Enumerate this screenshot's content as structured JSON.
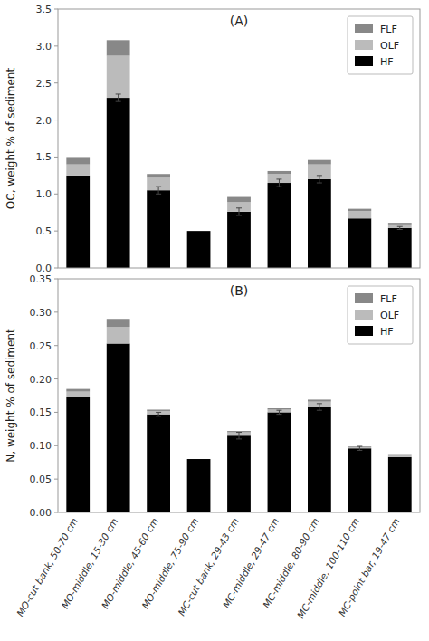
{
  "chart_data": [
    {
      "type": "bar",
      "stacked": true,
      "title": "(A)",
      "y_label": "OC, weight % of sediment",
      "categories": [
        "MO-cut bank, 50-70 cm",
        "MO-middle, 15-30 cm",
        "MO-middle, 45-60 cm",
        "MO-middle, 75-90 cm",
        "MC-cut bank, 29-43 cm",
        "MC-middle, 29-47 cm",
        "MC-middle, 80-90 cm",
        "MC-middle, 100-110 cm",
        "MC-point bar, 19-47 cm"
      ],
      "series": [
        {
          "name": "HF",
          "color": "#000000",
          "values": [
            1.25,
            2.3,
            1.05,
            0.5,
            0.76,
            1.15,
            1.2,
            0.67,
            0.54
          ],
          "errors": [
            0.0,
            0.05,
            0.05,
            0.0,
            0.05,
            0.05,
            0.05,
            0.0,
            0.02
          ]
        },
        {
          "name": "OLF",
          "color": "#bbbbbb",
          "values": [
            0.15,
            0.57,
            0.17,
            0.0,
            0.13,
            0.12,
            0.2,
            0.1,
            0.05
          ]
        },
        {
          "name": "FLF",
          "color": "#888888",
          "values": [
            0.1,
            0.21,
            0.05,
            0.0,
            0.07,
            0.04,
            0.06,
            0.03,
            0.02
          ]
        }
      ],
      "ylim": [
        0.0,
        3.5
      ],
      "yticks": [
        {
          "value": 0.0,
          "label": "0.0"
        },
        0.5,
        {
          "value": 1.0,
          "label": "1.0"
        },
        1.5,
        {
          "value": 2.0,
          "label": "2.0"
        },
        2.5,
        {
          "value": 3.0,
          "label": "3.0"
        },
        3.5
      ],
      "grid": false,
      "legend": "upper right",
      "tick_labels": "y"
    },
    {
      "type": "bar",
      "stacked": true,
      "title": "(B)",
      "y_label": "N, weight % of sediment",
      "categories": [
        "MO-cut bank, 50-70 cm",
        "MO-middle, 15-30 cm",
        "MO-middle, 45-60 cm",
        "MO-middle, 75-90 cm",
        "MC-cut bank, 29-43 cm",
        "MC-middle, 29-47 cm",
        "MC-middle, 80-90 cm",
        "MC-middle, 100-110 cm",
        "MC-point bar, 19-47 cm"
      ],
      "series": [
        {
          "name": "HF",
          "color": "#000000",
          "values": [
            0.173,
            0.253,
            0.147,
            0.08,
            0.115,
            0.15,
            0.158,
            0.096,
            0.083
          ],
          "errors": [
            0.0,
            0.0,
            0.003,
            0.0,
            0.005,
            0.003,
            0.005,
            0.003,
            0.0
          ]
        },
        {
          "name": "OLF",
          "color": "#bbbbbb",
          "values": [
            0.008,
            0.025,
            0.005,
            0.0,
            0.005,
            0.004,
            0.008,
            0.002,
            0.002
          ]
        },
        {
          "name": "FLF",
          "color": "#888888",
          "values": [
            0.004,
            0.012,
            0.002,
            0.0,
            0.002,
            0.002,
            0.003,
            0.001,
            0.001
          ]
        }
      ],
      "ylim": [
        0.0,
        0.35
      ],
      "yticks": [
        {
          "value": 0.0,
          "label": "0.00"
        },
        0.05,
        {
          "value": 0.1,
          "label": "0.10"
        },
        0.15,
        {
          "value": 0.2,
          "label": "0.20"
        },
        0.25,
        {
          "value": 0.3,
          "label": "0.30"
        },
        0.35
      ],
      "grid": false,
      "legend": "upper right"
    }
  ]
}
